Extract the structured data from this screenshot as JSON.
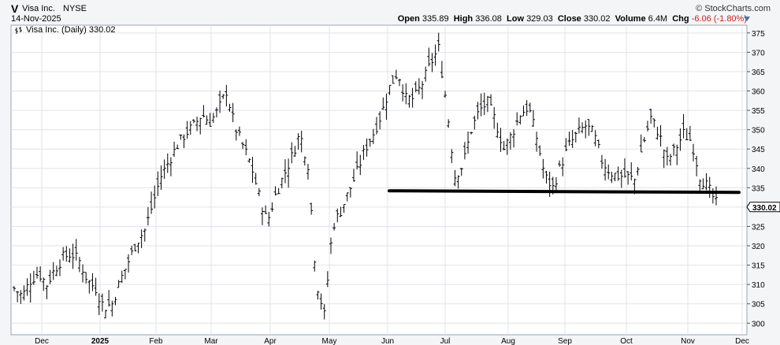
{
  "header": {
    "symbol": "V",
    "name": "Visa Inc.",
    "exchange": "NYSE",
    "date": "14-Nov-2025",
    "brand": "© StockCharts.com",
    "open_label": "Open",
    "open": "335.89",
    "high_label": "High",
    "high": "336.08",
    "low_label": "Low",
    "low": "329.03",
    "close_label": "Close",
    "close": "330.02",
    "volume_label": "Volume",
    "volume": "6.4M",
    "chg_label": "Chg",
    "chg": "-6.06 (-1.80%)"
  },
  "legend": {
    "label": "Visa Inc. (Daily) 330.02"
  },
  "last_price_tag": "330.02",
  "colors": {
    "bars": "#000000",
    "support_line": "#000000",
    "grid": "#dfe3ea",
    "panel_bg": "#ffffff",
    "negative": "#d01c1c"
  },
  "chart_data": {
    "type": "ohlc",
    "title": "Visa Inc. (Daily) 330.02",
    "ylim": [
      297,
      377
    ],
    "y_ticks": [
      300,
      305,
      310,
      315,
      320,
      325,
      330,
      335,
      340,
      345,
      350,
      355,
      360,
      365,
      370,
      375
    ],
    "x_ticks": [
      "Dec",
      "2025",
      "Feb",
      "Mar",
      "Apr",
      "May",
      "Jun",
      "Jul",
      "Aug",
      "Sep",
      "Oct",
      "Nov",
      "Dec"
    ],
    "grid": true,
    "support_line": {
      "value": 334,
      "label": ""
    },
    "last_close": 330.02,
    "series": [
      {
        "name": "",
        "approx_daily_close_path": [
          [
            0,
            309
          ],
          [
            5,
            307
          ],
          [
            10,
            311
          ],
          [
            15,
            313
          ],
          [
            20,
            310
          ],
          [
            25,
            314
          ],
          [
            30,
            317
          ],
          [
            35,
            318
          ],
          [
            40,
            316
          ],
          [
            45,
            311
          ],
          [
            50,
            309
          ],
          [
            55,
            304
          ],
          [
            60,
            305
          ],
          [
            65,
            311
          ],
          [
            70,
            316
          ],
          [
            75,
            321
          ],
          [
            80,
            324
          ],
          [
            85,
            331
          ],
          [
            90,
            338
          ],
          [
            95,
            342
          ],
          [
            100,
            346
          ],
          [
            105,
            349
          ],
          [
            110,
            351
          ],
          [
            115,
            354
          ],
          [
            120,
            352
          ],
          [
            125,
            355
          ],
          [
            130,
            360
          ],
          [
            135,
            351
          ],
          [
            140,
            346
          ],
          [
            145,
            341
          ],
          [
            150,
            333
          ],
          [
            155,
            326
          ],
          [
            160,
            333
          ],
          [
            165,
            338
          ],
          [
            170,
            343
          ],
          [
            175,
            349
          ],
          [
            180,
            341
          ],
          [
            185,
            311
          ],
          [
            190,
            302
          ],
          [
            195,
            325
          ],
          [
            200,
            329
          ],
          [
            205,
            334
          ],
          [
            210,
            339
          ],
          [
            215,
            345
          ],
          [
            220,
            349
          ],
          [
            225,
            354
          ],
          [
            230,
            361
          ],
          [
            235,
            365
          ],
          [
            240,
            358
          ],
          [
            245,
            358
          ],
          [
            250,
            362
          ],
          [
            255,
            367
          ],
          [
            260,
            371
          ],
          [
            265,
            356
          ],
          [
            270,
            338
          ],
          [
            275,
            341
          ],
          [
            280,
            350
          ],
          [
            285,
            355
          ],
          [
            290,
            357
          ],
          [
            295,
            352
          ],
          [
            300,
            345
          ],
          [
            305,
            349
          ],
          [
            310,
            354
          ],
          [
            315,
            356
          ],
          [
            320,
            348
          ],
          [
            325,
            338
          ],
          [
            330,
            335
          ],
          [
            335,
            341
          ],
          [
            340,
            346
          ],
          [
            345,
            349
          ],
          [
            350,
            351
          ],
          [
            355,
            349
          ],
          [
            360,
            342
          ],
          [
            365,
            339
          ],
          [
            370,
            338
          ],
          [
            375,
            338
          ],
          [
            380,
            337
          ],
          [
            385,
            346
          ],
          [
            390,
            353
          ],
          [
            395,
            349
          ],
          [
            400,
            342
          ],
          [
            405,
            345
          ],
          [
            410,
            349
          ],
          [
            415,
            347
          ],
          [
            420,
            338
          ],
          [
            425,
            335
          ],
          [
            430,
            331
          ]
        ]
      }
    ]
  }
}
